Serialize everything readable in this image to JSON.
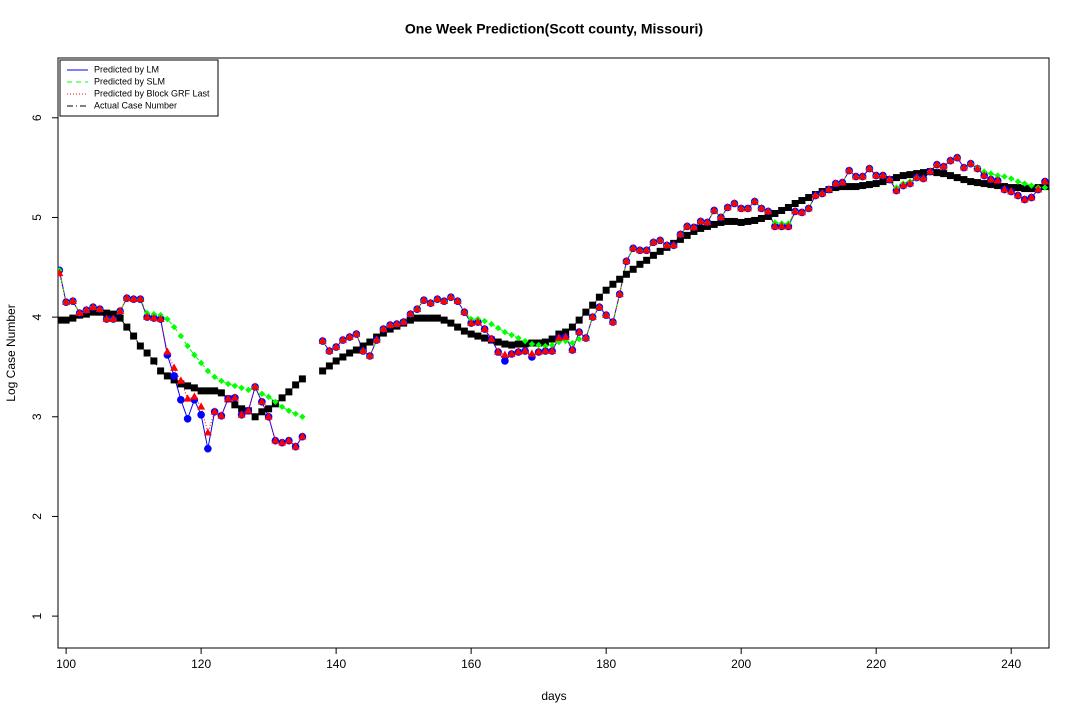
{
  "chart_data": {
    "type": "line-points",
    "title": "One Week Prediction(Scott county, Missouri)",
    "x_label": "days",
    "y_label": "Log Case Number",
    "xlim": [
      98.8,
      245.6
    ],
    "ylim": [
      0.68,
      6.6
    ],
    "xticks": [
      100,
      120,
      140,
      160,
      180,
      200,
      220,
      240
    ],
    "yticks": [
      1,
      2,
      3,
      4,
      5,
      6
    ],
    "grid": false,
    "legend": "top-left",
    "x": [
      99,
      100,
      101,
      102,
      103,
      104,
      105,
      106,
      107,
      108,
      109,
      110,
      111,
      112,
      113,
      114,
      115,
      116,
      117,
      118,
      119,
      120,
      121,
      122,
      123,
      124,
      125,
      126,
      127,
      128,
      129,
      130,
      131,
      132,
      133,
      134,
      135,
      136,
      137,
      138,
      139,
      140,
      141,
      142,
      143,
      144,
      145,
      146,
      147,
      148,
      149,
      150,
      151,
      152,
      153,
      154,
      155,
      156,
      157,
      158,
      159,
      160,
      161,
      162,
      163,
      164,
      165,
      166,
      167,
      168,
      169,
      170,
      171,
      172,
      173,
      174,
      175,
      176,
      177,
      178,
      179,
      180,
      181,
      182,
      183,
      184,
      185,
      186,
      187,
      188,
      189,
      190,
      191,
      192,
      193,
      194,
      195,
      196,
      197,
      198,
      199,
      200,
      201,
      202,
      203,
      204,
      205,
      206,
      207,
      208,
      209,
      210,
      211,
      212,
      213,
      214,
      215,
      216,
      217,
      218,
      219,
      220,
      221,
      222,
      223,
      224,
      225,
      226,
      227,
      228,
      229,
      230,
      231,
      232,
      233,
      234,
      235,
      236,
      237,
      238,
      239,
      240,
      241,
      242,
      243,
      244,
      245
    ],
    "series": [
      {
        "name": "Actual Case Number",
        "color": "#000000",
        "dash": "6 3 1 3",
        "marker": "square",
        "values": [
          3.97,
          3.97,
          3.99,
          4.02,
          4.03,
          4.05,
          4.05,
          4.04,
          4.03,
          3.99,
          3.9,
          3.81,
          3.71,
          3.64,
          3.56,
          3.46,
          3.41,
          3.37,
          3.33,
          3.31,
          3.29,
          3.26,
          3.26,
          3.26,
          3.24,
          3.18,
          3.12,
          3.08,
          3.06,
          3.0,
          3.05,
          3.08,
          3.13,
          3.19,
          3.25,
          3.32,
          3.38,
          null,
          null,
          3.46,
          3.51,
          3.56,
          3.6,
          3.64,
          3.67,
          3.71,
          3.75,
          3.8,
          3.84,
          3.88,
          3.91,
          3.94,
          3.97,
          3.99,
          3.99,
          3.99,
          3.99,
          3.97,
          3.94,
          3.9,
          3.86,
          3.83,
          3.81,
          3.79,
          3.77,
          3.75,
          3.73,
          3.72,
          3.73,
          3.73,
          3.74,
          3.74,
          3.75,
          3.78,
          3.83,
          3.85,
          3.9,
          3.97,
          4.05,
          4.12,
          4.2,
          4.27,
          4.33,
          4.38,
          4.43,
          4.48,
          4.53,
          4.57,
          4.62,
          4.66,
          4.7,
          4.74,
          4.78,
          4.82,
          4.86,
          4.89,
          4.91,
          4.93,
          4.95,
          4.96,
          4.96,
          4.95,
          4.96,
          4.97,
          4.99,
          5.01,
          5.04,
          5.07,
          5.1,
          5.14,
          5.17,
          5.2,
          5.23,
          5.26,
          5.28,
          5.3,
          5.31,
          5.31,
          5.31,
          5.32,
          5.33,
          5.34,
          5.36,
          5.38,
          5.4,
          5.42,
          5.43,
          5.44,
          5.45,
          5.46,
          5.45,
          5.44,
          5.42,
          5.4,
          5.38,
          5.36,
          5.35,
          5.34,
          5.33,
          5.32,
          5.31,
          5.3,
          5.3,
          5.29,
          5.29,
          5.3,
          5.31
        ]
      },
      {
        "name": "Predicted by LM",
        "color": "#0000ff",
        "dash": "none",
        "marker": "circle",
        "values": [
          4.47,
          4.15,
          4.16,
          4.04,
          4.07,
          4.1,
          4.08,
          3.98,
          3.98,
          4.06,
          4.19,
          4.18,
          4.18,
          4.0,
          3.99,
          3.98,
          3.62,
          3.41,
          3.17,
          2.98,
          3.17,
          3.02,
          2.68,
          3.05,
          3.01,
          3.18,
          3.19,
          3.02,
          3.06,
          3.3,
          3.15,
          3.0,
          2.76,
          2.74,
          2.76,
          2.7,
          2.8,
          null,
          null,
          3.76,
          3.66,
          3.7,
          3.77,
          3.8,
          3.83,
          3.66,
          3.61,
          3.77,
          3.88,
          3.92,
          3.93,
          3.95,
          4.03,
          4.08,
          4.17,
          4.14,
          4.18,
          4.16,
          4.2,
          4.16,
          4.05,
          3.94,
          3.95,
          3.88,
          3.78,
          3.65,
          3.56,
          3.63,
          3.65,
          3.66,
          3.6,
          3.65,
          3.66,
          3.66,
          3.79,
          3.8,
          3.67,
          3.85,
          3.79,
          4.0,
          4.1,
          4.02,
          3.95,
          4.23,
          4.56,
          4.69,
          4.67,
          4.67,
          4.75,
          4.77,
          4.72,
          4.72,
          4.83,
          4.91,
          4.9,
          4.96,
          4.95,
          5.07,
          5.0,
          5.1,
          5.14,
          5.09,
          5.09,
          5.16,
          5.09,
          5.06,
          4.91,
          4.91,
          4.91,
          5.06,
          5.05,
          5.09,
          5.22,
          5.24,
          5.28,
          5.34,
          5.35,
          5.47,
          5.41,
          5.41,
          5.49,
          5.42,
          5.42,
          5.38,
          5.27,
          5.32,
          5.34,
          5.4,
          5.39,
          5.46,
          5.53,
          5.51,
          5.57,
          5.6,
          5.5,
          5.54,
          5.49,
          5.42,
          5.38,
          5.37,
          5.28,
          5.26,
          5.22,
          5.18,
          5.2,
          5.28,
          5.36
        ]
      },
      {
        "name": "Predicted by SLM",
        "color": "#00ff00",
        "dash": "5 4",
        "marker": "diamond",
        "values": [
          4.47,
          4.15,
          4.16,
          4.04,
          4.07,
          4.1,
          4.08,
          3.98,
          3.98,
          4.06,
          4.19,
          4.18,
          4.18,
          4.04,
          4.03,
          4.02,
          3.98,
          3.9,
          3.81,
          3.71,
          3.62,
          3.54,
          3.46,
          3.4,
          3.36,
          3.33,
          3.31,
          3.29,
          3.27,
          3.3,
          3.23,
          3.2,
          3.15,
          3.1,
          3.06,
          3.03,
          3.0,
          null,
          null,
          3.76,
          3.66,
          3.7,
          3.77,
          3.8,
          3.83,
          3.66,
          3.61,
          3.77,
          3.88,
          3.92,
          3.93,
          3.95,
          4.03,
          4.08,
          4.17,
          4.14,
          4.18,
          4.16,
          4.2,
          4.16,
          4.05,
          3.98,
          3.98,
          3.96,
          3.93,
          3.89,
          3.85,
          3.82,
          3.79,
          3.76,
          3.73,
          3.72,
          3.71,
          3.72,
          3.75,
          3.76,
          3.74,
          3.78,
          3.79,
          4.0,
          4.1,
          4.02,
          3.95,
          4.23,
          4.56,
          4.69,
          4.67,
          4.67,
          4.75,
          4.77,
          4.72,
          4.72,
          4.83,
          4.91,
          4.9,
          4.96,
          4.95,
          5.07,
          5.0,
          5.1,
          5.14,
          5.09,
          5.09,
          5.16,
          5.09,
          5.06,
          4.95,
          4.94,
          4.94,
          5.06,
          5.05,
          5.09,
          5.22,
          5.24,
          5.28,
          5.34,
          5.35,
          5.47,
          5.41,
          5.41,
          5.49,
          5.42,
          5.42,
          5.38,
          5.3,
          5.34,
          5.36,
          5.4,
          5.39,
          5.46,
          5.53,
          5.51,
          5.57,
          5.6,
          5.5,
          5.54,
          5.5,
          5.46,
          5.44,
          5.42,
          5.41,
          5.39,
          5.36,
          5.34,
          5.32,
          5.3,
          5.3
        ]
      },
      {
        "name": "Predicted by Block GRF Last",
        "color": "#ff0000",
        "dash": "1 2",
        "marker": "triangle",
        "values": [
          4.44,
          4.15,
          4.16,
          4.04,
          4.07,
          4.1,
          4.08,
          3.98,
          3.98,
          4.06,
          4.19,
          4.18,
          4.18,
          4.0,
          3.99,
          3.98,
          3.65,
          3.49,
          3.36,
          3.18,
          3.2,
          3.1,
          2.84,
          3.05,
          3.01,
          3.18,
          3.19,
          3.02,
          3.06,
          3.3,
          3.15,
          3.0,
          2.76,
          2.74,
          2.76,
          2.7,
          2.8,
          null,
          null,
          3.76,
          3.66,
          3.7,
          3.77,
          3.8,
          3.83,
          3.66,
          3.61,
          3.77,
          3.88,
          3.92,
          3.93,
          3.95,
          4.03,
          4.08,
          4.17,
          4.14,
          4.18,
          4.16,
          4.2,
          4.16,
          4.05,
          3.94,
          3.95,
          3.88,
          3.78,
          3.65,
          3.62,
          3.63,
          3.65,
          3.66,
          3.63,
          3.65,
          3.66,
          3.66,
          3.79,
          3.8,
          3.67,
          3.85,
          3.79,
          4.0,
          4.1,
          4.02,
          3.95,
          4.23,
          4.56,
          4.69,
          4.67,
          4.67,
          4.75,
          4.77,
          4.72,
          4.72,
          4.83,
          4.91,
          4.9,
          4.96,
          4.95,
          5.07,
          5.0,
          5.1,
          5.14,
          5.09,
          5.09,
          5.16,
          5.09,
          5.06,
          4.91,
          4.91,
          4.91,
          5.06,
          5.05,
          5.09,
          5.22,
          5.24,
          5.28,
          5.34,
          5.35,
          5.47,
          5.41,
          5.41,
          5.49,
          5.42,
          5.42,
          5.38,
          5.27,
          5.32,
          5.34,
          5.4,
          5.39,
          5.46,
          5.53,
          5.51,
          5.57,
          5.6,
          5.5,
          5.54,
          5.49,
          5.42,
          5.38,
          5.37,
          5.28,
          5.26,
          5.22,
          5.18,
          5.2,
          5.28,
          5.36
        ]
      }
    ]
  }
}
